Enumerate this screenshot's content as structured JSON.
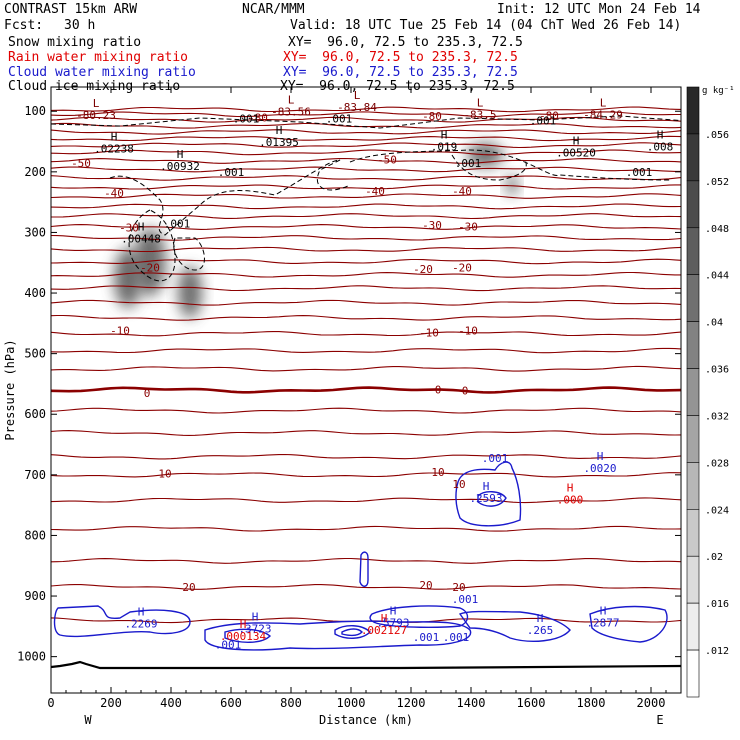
{
  "header": {
    "model": "CONTRAST 15km ARW",
    "fcst_label": "Fcst:",
    "fcst_value": "30 h",
    "org": "NCAR/MMM",
    "init": "Init: 12 UTC Mon 24 Feb 14",
    "valid": "Valid: 18 UTC Tue 25 Feb 14 (04 ChT Wed 26 Feb 14)"
  },
  "fields": [
    {
      "name": "Snow mixing ratio",
      "color": "#000000",
      "xy": "XY=  96.0, 72.5 to 235.3, 72.5"
    },
    {
      "name": "Rain water mixing ratio",
      "color": "#e00000",
      "xy": "XY=  96.0, 72.5 to 235.3, 72.5"
    },
    {
      "name": "Cloud water mixing ratio",
      "color": "#1a1acc",
      "xy": "XY=  96.0, 72.5 to 235.3, 72.5"
    },
    {
      "name": "Cloud ice mixing ratio",
      "color": "#000000",
      "xy": "XY=  96.0, 72.5 to 235.3, 72.5"
    }
  ],
  "chart_data": {
    "type": "contour",
    "xlabel": "Distance (km)",
    "ylabel": "Pressure (hPa)",
    "xlim": [
      0,
      2100
    ],
    "ylim": [
      1060,
      60
    ],
    "x_ticks": [
      0,
      200,
      400,
      600,
      800,
      1000,
      1200,
      1400,
      1600,
      1800,
      2000
    ],
    "y_ticks": [
      100,
      200,
      300,
      400,
      500,
      600,
      700,
      800,
      900,
      1000
    ],
    "west_label": "W",
    "east_label": "E",
    "colorbar": {
      "unit": "g kg⁻¹",
      "labels": [
        ".056",
        ".052",
        ".048",
        ".044",
        ".04",
        ".036",
        ".032",
        ".028",
        ".024",
        ".02",
        ".016",
        ".012"
      ]
    },
    "temperature_isotherms": [
      {
        "value": "10",
        "p": 697,
        "x": 400
      },
      {
        "value": "20",
        "p": 885,
        "x": 460
      },
      {
        "value": "0",
        "p": 565,
        "x": 320
      }
    ],
    "temperature_labels": [
      {
        "text": "-80",
        "x": 690,
        "p": 110
      },
      {
        "text": "-80",
        "x": 1270,
        "p": 108
      },
      {
        "text": "-80",
        "x": 1660,
        "p": 107
      },
      {
        "text": "-50",
        "x": 100,
        "p": 185
      },
      {
        "text": "-50",
        "x": 1120,
        "p": 180
      },
      {
        "text": "-40",
        "x": 210,
        "p": 235
      },
      {
        "text": "-40",
        "x": 1080,
        "p": 232
      },
      {
        "text": "-40",
        "x": 1370,
        "p": 232
      },
      {
        "text": "-30",
        "x": 260,
        "p": 292
      },
      {
        "text": "-30",
        "x": 1270,
        "p": 288
      },
      {
        "text": "-30",
        "x": 1390,
        "p": 290
      },
      {
        "text": "-20",
        "x": 330,
        "p": 358
      },
      {
        "text": "-20",
        "x": 1240,
        "p": 360
      },
      {
        "text": "-20",
        "x": 1370,
        "p": 358
      },
      {
        "text": "-10",
        "x": 230,
        "p": 462
      },
      {
        "text": "-10",
        "x": 1260,
        "p": 465
      },
      {
        "text": "-10",
        "x": 1390,
        "p": 462
      },
      {
        "text": "0",
        "x": 320,
        "p": 565
      },
      {
        "text": "0",
        "x": 1290,
        "p": 559
      },
      {
        "text": "0",
        "x": 1380,
        "p": 561
      },
      {
        "text": "10",
        "x": 380,
        "p": 698
      },
      {
        "text": "10",
        "x": 1290,
        "p": 695
      },
      {
        "text": "10",
        "x": 1360,
        "p": 715
      },
      {
        "text": "20",
        "x": 460,
        "p": 885
      },
      {
        "text": "20",
        "x": 1250,
        "p": 882
      },
      {
        "text": "20",
        "x": 1360,
        "p": 885
      }
    ],
    "extrema_labels": [
      {
        "marker": "L",
        "value": "-80.23",
        "x": 150,
        "p": 108,
        "color": "#7a0000"
      },
      {
        "marker": "L",
        "value": "-83.56",
        "x": 800,
        "p": 102,
        "color": "#7a0000"
      },
      {
        "marker": "L",
        "value": "-83.84",
        "x": 1020,
        "p": 95,
        "color": "#7a0000"
      },
      {
        "marker": "L",
        "value": "-83.5",
        "x": 1430,
        "p": 107,
        "color": "#7a0000"
      },
      {
        "marker": "L",
        "value": "-84.29",
        "x": 1840,
        "p": 107,
        "color": "#7a0000"
      },
      {
        "marker": "H",
        "value": ".02238",
        "x": 210,
        "p": 163,
        "color": "#000000"
      },
      {
        "marker": "H",
        "value": ".01395",
        "x": 760,
        "p": 152,
        "color": "#000000"
      },
      {
        "marker": "H",
        "value": ".019",
        "x": 1310,
        "p": 160,
        "color": "#000000"
      },
      {
        "marker": "H",
        "value": ".00520",
        "x": 1750,
        "p": 170,
        "color": "#000000"
      },
      {
        "marker": "H",
        "value": ".008",
        "x": 2030,
        "p": 160,
        "color": "#000000"
      },
      {
        "marker": "H",
        "value": ".00932",
        "x": 430,
        "p": 192,
        "color": "#000000"
      },
      {
        "marker": "H",
        "value": ".00448",
        "x": 300,
        "p": 312,
        "color": "#000000"
      },
      {
        "marker": "H",
        "value": ".0020",
        "x": 1830,
        "p": 690,
        "color": "#1a1acc"
      },
      {
        "marker": "H",
        "value": ".2593",
        "x": 1450,
        "p": 740,
        "color": "#1a1acc"
      },
      {
        "marker": "H",
        "value": ".000",
        "x": 1730,
        "p": 742,
        "color": "#e00000"
      },
      {
        "marker": "H",
        "value": ".2269",
        "x": 300,
        "p": 947,
        "color": "#1a1acc"
      },
      {
        "marker": "H",
        "value": ".3723",
        "x": 680,
        "p": 955,
        "color": "#1a1acc"
      },
      {
        "marker": "H",
        "value": ".000134",
        "x": 640,
        "p": 968,
        "color": "#e00000"
      },
      {
        "marker": "H",
        "value": ".5793",
        "x": 1140,
        "p": 945,
        "color": "#1a1acc"
      },
      {
        "marker": "H",
        "value": ".002127",
        "x": 1110,
        "p": 958,
        "color": "#e00000"
      },
      {
        "marker": "H",
        "value": ".265",
        "x": 1630,
        "p": 958,
        "color": "#1a1acc"
      },
      {
        "marker": "H",
        "value": ".2877",
        "x": 1840,
        "p": 945,
        "color": "#1a1acc"
      }
    ],
    "contour_labels": [
      {
        "text": ".001",
        "x": 650,
        "p": 112,
        "color": "#000000"
      },
      {
        "text": ".001",
        "x": 960,
        "p": 112,
        "color": "#000000"
      },
      {
        "text": ".001",
        "x": 1640,
        "p": 115,
        "color": "#000000"
      },
      {
        "text": ".001",
        "x": 1390,
        "p": 185,
        "color": "#000000"
      },
      {
        "text": ".001",
        "x": 600,
        "p": 200,
        "color": "#000000"
      },
      {
        "text": ".001",
        "x": 1960,
        "p": 200,
        "color": "#000000"
      },
      {
        "text": ".001",
        "x": 420,
        "p": 285,
        "color": "#000000"
      },
      {
        "text": ".001",
        "x": 1480,
        "p": 672,
        "color": "#1a1acc"
      },
      {
        "text": ".001",
        "x": 1380,
        "p": 905,
        "color": "#1a1acc"
      },
      {
        "text": ".001",
        "x": 590,
        "p": 980,
        "color": "#1a1acc"
      },
      {
        "text": ".001",
        "x": 1250,
        "p": 968,
        "color": "#1a1acc"
      },
      {
        "text": ".001",
        "x": 1350,
        "p": 968,
        "color": "#1a1acc"
      }
    ]
  }
}
